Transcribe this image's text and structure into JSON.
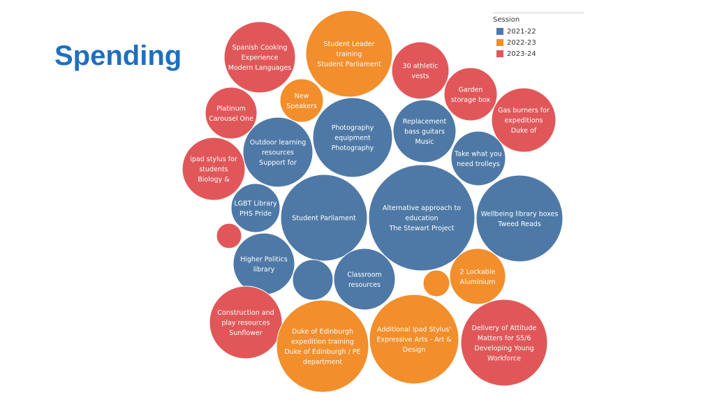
{
  "slide": {
    "title": "Spending"
  },
  "legend": {
    "title": "Session",
    "items": [
      {
        "label": "2021-22",
        "color": "#4E79A7"
      },
      {
        "label": "2022-23",
        "color": "#F28E2B"
      },
      {
        "label": "2023-24",
        "color": "#E15759"
      }
    ]
  },
  "chart_data": {
    "type": "bubble",
    "series_field": "Session",
    "bubbles": [
      {
        "lines": [
          "Spanish Cooking",
          "Experience",
          "Modern Languages"
        ],
        "session": "2023-24"
      },
      {
        "lines": [
          "Student Leader",
          "training",
          "Student Parliament"
        ],
        "session": "2022-23"
      },
      {
        "lines": [
          "30 athletic",
          "vests"
        ],
        "session": "2023-24"
      },
      {
        "lines": [
          "Garden",
          "storage box"
        ],
        "session": "2023-24"
      },
      {
        "lines": [
          "Gas burners for",
          "expeditions",
          "Duke of"
        ],
        "session": "2023-24"
      },
      {
        "lines": [
          "New",
          "Speakers"
        ],
        "session": "2022-23"
      },
      {
        "lines": [
          "Platinum",
          "Carousel One"
        ],
        "session": "2023-24"
      },
      {
        "lines": [
          "Photography",
          "equipment",
          "Photography"
        ],
        "session": "2021-22"
      },
      {
        "lines": [
          "Replacement",
          "bass guitars",
          "Music"
        ],
        "session": "2021-22"
      },
      {
        "lines": [
          "Outdoor learning",
          "resources",
          "Support for"
        ],
        "session": "2021-22"
      },
      {
        "lines": [
          "Take what you",
          "need trolleys"
        ],
        "session": "2021-22"
      },
      {
        "lines": [
          "ipad stylus for",
          "students",
          "Biology &"
        ],
        "session": "2023-24"
      },
      {
        "lines": [
          "LGBT Library",
          "PHS Pride"
        ],
        "session": "2021-22"
      },
      {
        "lines": [
          "Student Parliament"
        ],
        "session": "2021-22"
      },
      {
        "lines": [
          "Alternative approach to",
          "education",
          "The Stewart Project"
        ],
        "session": "2021-22"
      },
      {
        "lines": [
          "Wellbeing library boxes",
          "Tweed Reads"
        ],
        "session": "2021-22"
      },
      {
        "lines": [],
        "session": "2023-24"
      },
      {
        "lines": [
          "Higher Politics",
          "library"
        ],
        "session": "2021-22"
      },
      {
        "lines": [],
        "session": "2021-22"
      },
      {
        "lines": [
          "Classroom",
          "resources"
        ],
        "session": "2021-22"
      },
      {
        "lines": [],
        "session": "2022-23"
      },
      {
        "lines": [
          "2 Lockable",
          "Aluminium"
        ],
        "session": "2022-23"
      },
      {
        "lines": [
          "Construction and",
          "play resources",
          "Sunflower"
        ],
        "session": "2023-24"
      },
      {
        "lines": [
          "Duke of Edinburgh",
          "expedition training",
          "Duke of Edinburgh / PE",
          "department"
        ],
        "session": "2022-23"
      },
      {
        "lines": [
          "Additional Ipad Stylus'",
          "Expressive Arts - Art &",
          "Design"
        ],
        "session": "2022-23"
      },
      {
        "lines": [
          "Delivery of Attitude",
          "Matters for S5/6",
          "Developing Young",
          "Workforce"
        ],
        "session": "2023-24"
      }
    ]
  }
}
